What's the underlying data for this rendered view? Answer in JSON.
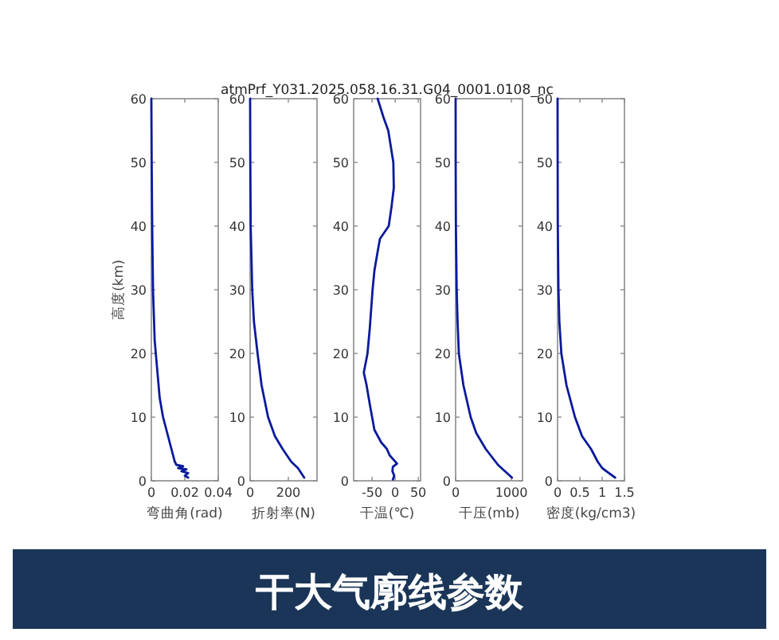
{
  "chart_data": [
    {
      "type": "line",
      "xlabel": "弯曲角(rad)",
      "ylabel": "高度(km)",
      "xlim": [
        0,
        0.04
      ],
      "xticks": [
        0,
        0.02,
        0.04
      ],
      "ylim": [
        0,
        60
      ],
      "yticks": [
        0,
        10,
        20,
        30,
        40,
        50,
        60
      ],
      "series": [
        {
          "color": "#0a1a9c",
          "x": [
            0,
            0.0002,
            0.0005,
            0.001,
            0.002,
            0.003,
            0.004,
            0.005,
            0.007,
            0.009,
            0.011,
            0.012,
            0.013,
            0.014,
            0.015,
            0.019,
            0.016,
            0.021,
            0.018,
            0.022,
            0.02,
            0.022
          ],
          "values": [
            60,
            50,
            40,
            30,
            22,
            19,
            16,
            13,
            10,
            8,
            6,
            5,
            4,
            3,
            2.5,
            2.3,
            2,
            1.8,
            1.5,
            1.2,
            0.8,
            0.5
          ]
        }
      ]
    },
    {
      "type": "line",
      "xlabel": "折射率(N)",
      "xlim": [
        0,
        350
      ],
      "xticks": [
        0,
        200
      ],
      "ylim": [
        0,
        60
      ],
      "yticks": [
        0,
        10,
        20,
        30,
        40,
        50,
        60
      ],
      "series": [
        {
          "color": "#0a1a9c",
          "x": [
            0,
            1,
            3,
            11,
            20,
            39,
            60,
            94,
            130,
            170,
            215,
            250,
            283
          ],
          "values": [
            60,
            50,
            40,
            30,
            25,
            20,
            15,
            10,
            7,
            5,
            3,
            2,
            0.5
          ]
        }
      ]
    },
    {
      "type": "line",
      "title": "atmPrf_Y031.2025.058.16.31.G04_0001.0108_nc",
      "xlabel": "干温(℃)",
      "xlim": [
        -90,
        55
      ],
      "xticks": [
        -50,
        0,
        50
      ],
      "ylim": [
        0,
        60
      ],
      "yticks": [
        0,
        10,
        20,
        30,
        40,
        50,
        60
      ],
      "annotations": [
        "干大气廓线参数"
      ],
      "series": [
        {
          "color": "#0a1a9c",
          "x": [
            -38,
            -25,
            -15,
            -4,
            -3,
            -8,
            -14,
            -33,
            -38,
            -45,
            -49,
            -52,
            -55,
            -60,
            -68,
            -62,
            -55,
            -50,
            -45,
            -30,
            -18,
            -12,
            4,
            -5,
            -6,
            -2,
            -5
          ],
          "values": [
            60,
            57,
            55,
            50,
            46,
            43,
            40,
            38,
            36,
            33,
            30,
            27,
            24,
            20,
            17,
            15,
            12,
            10,
            8,
            6,
            5,
            4,
            2.7,
            2.2,
            1.5,
            0.8,
            0.2
          ]
        }
      ]
    },
    {
      "type": "line",
      "xlabel": "干压(mb)",
      "xlim": [
        0,
        1200
      ],
      "xticks": [
        0,
        1000
      ],
      "ylim": [
        0,
        60
      ],
      "yticks": [
        0,
        10,
        20,
        30,
        40,
        50,
        60
      ],
      "series": [
        {
          "color": "#0a1a9c",
          "x": [
            0,
            1,
            5,
            19,
            35,
            58,
            140,
            270,
            370,
            540,
            760,
            1010
          ],
          "values": [
            60,
            50,
            40,
            30,
            25,
            20,
            15,
            10,
            7.5,
            5,
            2.5,
            0.5
          ]
        }
      ]
    },
    {
      "type": "line",
      "xlabel": "密度(kg/cm3)",
      "xlim": [
        0,
        1.5
      ],
      "xticks": [
        0,
        0.5,
        1,
        1.5
      ],
      "ylim": [
        0,
        60
      ],
      "yticks": [
        0,
        10,
        20,
        30,
        40,
        50,
        60
      ],
      "series": [
        {
          "color": "#0a1a9c",
          "x": [
            0,
            0.002,
            0.005,
            0.02,
            0.04,
            0.085,
            0.2,
            0.39,
            0.55,
            0.75,
            0.9,
            1.0,
            1.29
          ],
          "values": [
            60,
            50,
            40,
            30,
            25,
            20,
            15,
            10,
            7,
            5,
            3,
            2,
            0.5
          ]
        }
      ]
    }
  ]
}
